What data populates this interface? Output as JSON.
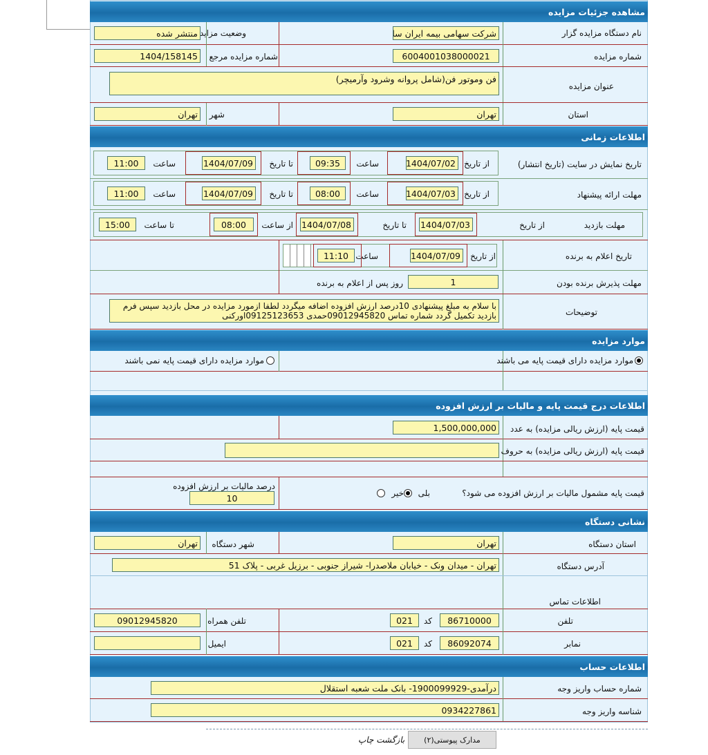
{
  "sections": {
    "details": "مشاهده جزئیات مزایده",
    "time": "اطلاعات زمانی",
    "items": "موارد مزایده",
    "price": "اطلاعات درج قیمت پایه و مالیات بر ارزش افزوده",
    "device": "نشانی دستگاه",
    "account": "اطلاعات حساب"
  },
  "details": {
    "org_label": "نام دستگاه مزایده گزار",
    "org": "شرکت سهامی بیمه ایران سا",
    "status_label": "وضعیت مزایده",
    "status": "منتشر شده",
    "number_label": "شماره مزایده",
    "number": "6004001038000021",
    "ref_label": "شماره مزایده مرجع",
    "ref": "1404/158145",
    "title_label": "عنوان مزایده",
    "title": "فن وموتور فن(شامل پروانه وشرود وآرمیچر)",
    "province_label": "استان",
    "province": "تهران",
    "city_label": "شهر",
    "city": "تهران"
  },
  "time": {
    "from": "از تاریخ",
    "to": "تا تاریخ",
    "hour": "ساعت",
    "from_hour": "از ساعت",
    "to_hour": "تا ساعت",
    "display": {
      "label": "تاریخ نمایش در سایت (تاریخ انتشار)",
      "from_date": "1404/07/02",
      "from_time": "09:35",
      "to_date": "1404/07/09",
      "to_time": "11:00"
    },
    "offer": {
      "label": "مهلت ارائه پیشنهاد",
      "from_date": "1404/07/03",
      "from_time": "08:00",
      "to_date": "1404/07/09",
      "to_time": "11:00"
    },
    "visit": {
      "label": "مهلت بازدید",
      "from_date": "1404/07/03",
      "to_date": "1404/07/08",
      "from_time": "08:00",
      "to_time": "15:00"
    },
    "winner": {
      "label": "تاریخ اعلام به برنده",
      "date": "1404/07/09",
      "time": "11:10"
    },
    "accept": {
      "label": "مهلت پذیرش برنده بودن",
      "value": "1",
      "suffix": "روز پس از اعلام به برنده"
    },
    "desc_label": "توضیحات",
    "desc": "با سلام به مبلغ پیشنهادی 10درصد ارزش افزوده اضافه میگردد لطفا ازمورد مزایده در محل بازدید سپس فرم بازدید تکمیل گردد شماره تماس 09012945820حمدی 09125123653اورکنی"
  },
  "items": {
    "with_price": "موارد مزایده دارای قیمت پایه می باشند",
    "without_price": "موارد مزایده دارای قیمت پایه نمی باشند",
    "selected": "with_price"
  },
  "price": {
    "num_label": "قیمت پایه (ارزش ریالی مزایده) به عدد",
    "num": "1,500,000,000",
    "words_label": "قیمت پایه (ارزش ریالی مزایده) به حروف",
    "words": "",
    "vat_q": "قیمت پایه مشمول مالیات بر ارزش افزوده می شود؟",
    "yes": "بلی",
    "no": "خیر",
    "vat_selected": "yes",
    "vat_pct_label": "درصد مالیات بر ارزش افزوده",
    "vat_pct": "10"
  },
  "device": {
    "province_label": "استان دستگاه",
    "province": "تهران",
    "city_label": "شهر دستگاه",
    "city": "تهران",
    "address_label": "آدرس دستگاه",
    "address": "تهران - میدان ونک - خیابان ملاصدرا- شیراز جنوبی - برزیل غربی - پلاک 51",
    "contact_label": "اطلاعات تماس",
    "phone_label": "تلفن",
    "phone": "86710000",
    "code_label": "کد",
    "phone_code": "021",
    "mobile_label": "تلفن همراه",
    "mobile": "09012945820",
    "fax_label": "نمابر",
    "fax": "86092074",
    "fax_code": "021",
    "email_label": "ایمیل",
    "email": ""
  },
  "account": {
    "number_label": "شماره حساب واریز وجه",
    "number": "درآمدی-1900099929- بانک ملت شعبه استقلال",
    "id_label": "شناسه واریز وجه",
    "id": "0934227861"
  },
  "footer": {
    "attachments": "مدارک پیوستی(۲)",
    "back": "بازگشت",
    "print": "چاپ"
  }
}
